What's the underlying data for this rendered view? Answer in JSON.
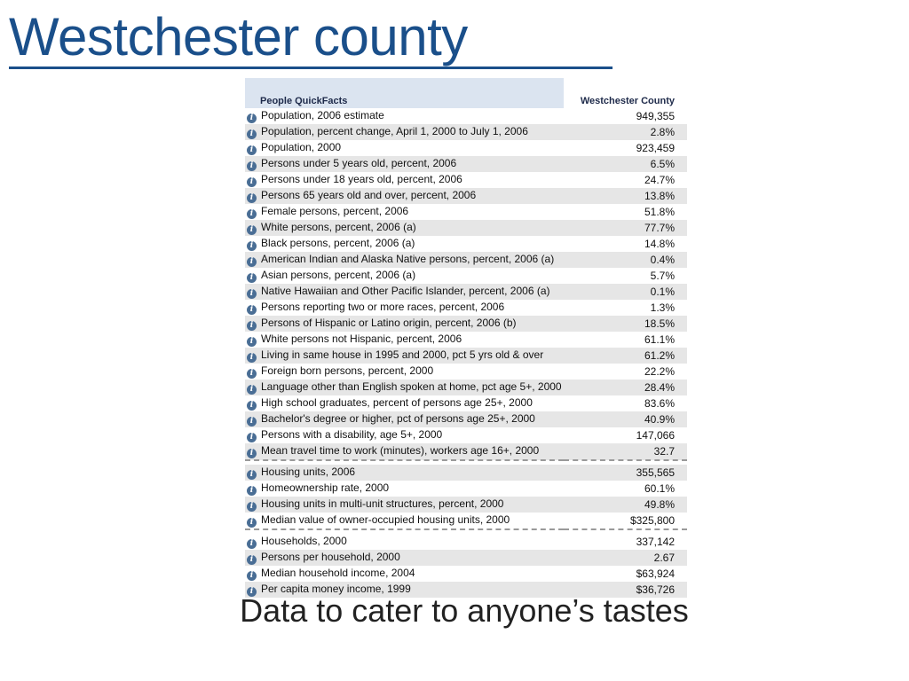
{
  "slide": {
    "title": "Westchester county",
    "caption": "Data to cater to anyone’s tastes"
  },
  "table": {
    "header_label": "People QuickFacts",
    "header_value": "Westchester County",
    "icon": "info-icon",
    "sections": [
      [
        {
          "label": "Population, 2006 estimate",
          "value": "949,355"
        },
        {
          "label": "Population, percent change, April 1, 2000 to July 1, 2006",
          "value": "2.8%"
        },
        {
          "label": "Population, 2000",
          "value": "923,459"
        },
        {
          "label": "Persons under 5 years old, percent, 2006",
          "value": "6.5%"
        },
        {
          "label": "Persons under 18 years old, percent, 2006",
          "value": "24.7%"
        },
        {
          "label": "Persons 65 years old and over, percent, 2006",
          "value": "13.8%"
        },
        {
          "label": "Female persons, percent, 2006",
          "value": "51.8%"
        },
        {
          "label": "White persons, percent, 2006 (a)",
          "value": "77.7%"
        },
        {
          "label": "Black persons, percent, 2006 (a)",
          "value": "14.8%"
        },
        {
          "label": "American Indian and Alaska Native persons, percent, 2006 (a)",
          "value": "0.4%"
        },
        {
          "label": "Asian persons, percent, 2006 (a)",
          "value": "5.7%"
        },
        {
          "label": "Native Hawaiian and Other Pacific Islander, percent, 2006 (a)",
          "value": "0.1%"
        },
        {
          "label": "Persons reporting two or more races, percent, 2006",
          "value": "1.3%"
        },
        {
          "label": "Persons of Hispanic or Latino origin, percent, 2006 (b)",
          "value": "18.5%"
        },
        {
          "label": "White persons not Hispanic, percent, 2006",
          "value": "61.1%"
        },
        {
          "label": "Living in same house in 1995 and 2000, pct 5 yrs old & over",
          "value": "61.2%"
        },
        {
          "label": "Foreign born persons, percent, 2000",
          "value": "22.2%"
        },
        {
          "label": "Language other than English spoken at home, pct age 5+, 2000",
          "value": "28.4%"
        },
        {
          "label": "High school graduates, percent of persons age 25+, 2000",
          "value": "83.6%"
        },
        {
          "label": "Bachelor's degree or higher, pct of persons age 25+, 2000",
          "value": "40.9%"
        },
        {
          "label": "Persons with a disability, age 5+, 2000",
          "value": "147,066"
        },
        {
          "label": "Mean travel time to work (minutes), workers age 16+, 2000",
          "value": "32.7"
        }
      ],
      [
        {
          "label": "Housing units, 2006",
          "value": "355,565"
        },
        {
          "label": "Homeownership rate, 2000",
          "value": "60.1%"
        },
        {
          "label": "Housing units in multi-unit structures, percent, 2000",
          "value": "49.8%"
        },
        {
          "label": "Median value of owner-occupied housing units, 2000",
          "value": "$325,800"
        }
      ],
      [
        {
          "label": "Households, 2000",
          "value": "337,142"
        },
        {
          "label": "Persons per household, 2000",
          "value": "2.67"
        },
        {
          "label": "Median household income, 2004",
          "value": "$63,924"
        },
        {
          "label": "Per capita money income, 1999",
          "value": "$36,726"
        }
      ]
    ]
  }
}
